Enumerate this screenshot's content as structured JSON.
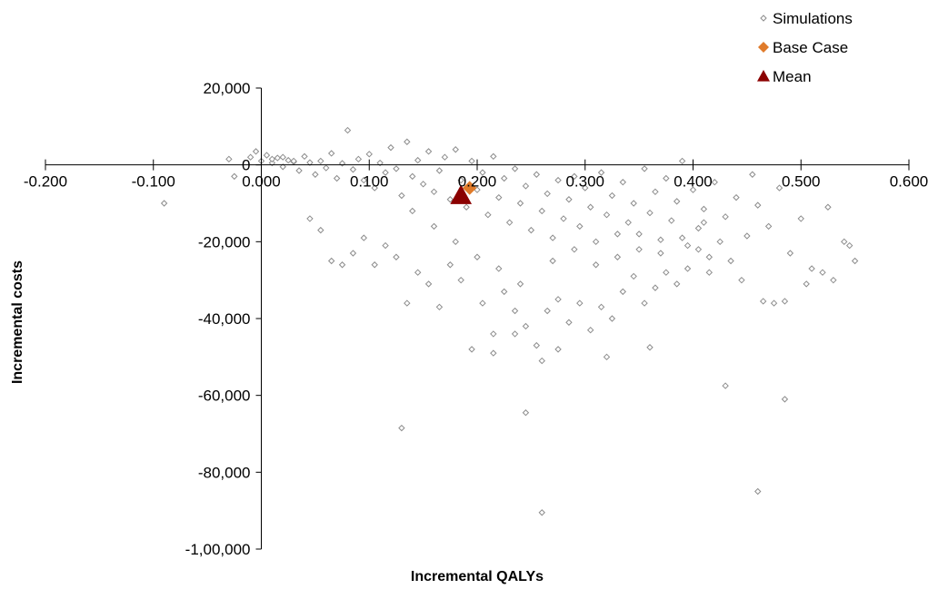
{
  "chart_data": {
    "type": "scatter",
    "xlabel": "Incremental QALYs",
    "ylabel": "Incremental costs",
    "xlim": [
      -0.2,
      0.6
    ],
    "ylim": [
      -100000,
      20000
    ],
    "x_ticks": [
      -0.2,
      -0.1,
      0.0,
      0.1,
      0.2,
      0.3,
      0.4,
      0.5,
      0.6
    ],
    "x_tick_labels": [
      "-0.200",
      "-0.100",
      "0.000",
      "0.100",
      "0.200",
      "0.300",
      "0.400",
      "0.500",
      "0.600"
    ],
    "y_ticks": [
      20000,
      0,
      -20000,
      -40000,
      -60000,
      -80000,
      -100000
    ],
    "y_tick_labels": [
      "20,000",
      "0",
      "-20,000",
      "-40,000",
      "-60,000",
      "-80,000",
      "-1,00,000"
    ],
    "legend_position": "top-right",
    "colors": {
      "simulations": "#8c8c8c",
      "base_case": "#e07b2a",
      "mean": "#8b0000",
      "axis": "#000000"
    },
    "series": [
      {
        "name": "Simulations",
        "marker": "diamond-outline",
        "points": [
          [
            -0.03,
            1500
          ],
          [
            -0.025,
            -3000
          ],
          [
            -0.01,
            2000
          ],
          [
            -0.005,
            3500
          ],
          [
            0.0,
            1000
          ],
          [
            0.005,
            2500
          ],
          [
            0.01,
            500
          ],
          [
            0.015,
            1800
          ],
          [
            0.02,
            -500
          ],
          [
            0.025,
            1200
          ],
          [
            0.03,
            800
          ],
          [
            0.035,
            -1500
          ],
          [
            0.04,
            2200
          ],
          [
            0.045,
            600
          ],
          [
            0.05,
            -2500
          ],
          [
            0.055,
            1000
          ],
          [
            0.06,
            -800
          ],
          [
            0.065,
            3000
          ],
          [
            0.07,
            -3500
          ],
          [
            0.075,
            400
          ],
          [
            0.08,
            9000
          ],
          [
            0.085,
            -1200
          ],
          [
            0.09,
            1500
          ],
          [
            0.095,
            -4000
          ],
          [
            0.1,
            2800
          ],
          [
            0.105,
            -6000
          ],
          [
            0.11,
            500
          ],
          [
            0.115,
            -2000
          ],
          [
            0.12,
            4500
          ],
          [
            0.125,
            -1000
          ],
          [
            0.13,
            -8000
          ],
          [
            0.135,
            6000
          ],
          [
            0.14,
            -3000
          ],
          [
            0.145,
            1200
          ],
          [
            0.15,
            -5000
          ],
          [
            0.155,
            3500
          ],
          [
            0.16,
            -7000
          ],
          [
            0.165,
            -1500
          ],
          [
            0.17,
            2000
          ],
          [
            0.175,
            -9000
          ],
          [
            0.18,
            4000
          ],
          [
            0.185,
            -4000
          ],
          [
            0.19,
            -11000
          ],
          [
            0.195,
            1000
          ],
          [
            0.2,
            -6500
          ],
          [
            0.205,
            -2000
          ],
          [
            0.21,
            -13000
          ],
          [
            0.215,
            2200
          ],
          [
            0.22,
            -8500
          ],
          [
            0.225,
            -3500
          ],
          [
            0.23,
            -15000
          ],
          [
            0.235,
            -1000
          ],
          [
            0.24,
            -10000
          ],
          [
            0.245,
            -5500
          ],
          [
            0.25,
            -17000
          ],
          [
            0.255,
            -2500
          ],
          [
            0.26,
            -12000
          ],
          [
            0.265,
            -7500
          ],
          [
            0.27,
            -19000
          ],
          [
            0.275,
            -4000
          ],
          [
            0.28,
            -14000
          ],
          [
            0.285,
            -9000
          ],
          [
            0.29,
            -3000
          ],
          [
            0.295,
            -16000
          ],
          [
            0.3,
            -6000
          ],
          [
            0.305,
            -11000
          ],
          [
            0.31,
            -20000
          ],
          [
            0.315,
            -2000
          ],
          [
            0.32,
            -13000
          ],
          [
            0.325,
            -8000
          ],
          [
            0.33,
            -18000
          ],
          [
            0.335,
            -4500
          ],
          [
            0.34,
            -15000
          ],
          [
            0.345,
            -10000
          ],
          [
            0.35,
            -22000
          ],
          [
            0.355,
            -1000
          ],
          [
            0.36,
            -12500
          ],
          [
            0.365,
            -7000
          ],
          [
            0.37,
            -19500
          ],
          [
            0.375,
            -3500
          ],
          [
            0.38,
            -14500
          ],
          [
            0.385,
            -9500
          ],
          [
            0.39,
            1000
          ],
          [
            0.395,
            -21000
          ],
          [
            0.4,
            -6500
          ],
          [
            0.405,
            -16500
          ],
          [
            0.41,
            -11500
          ],
          [
            0.415,
            -24000
          ],
          [
            0.42,
            -4500
          ],
          [
            0.43,
            -13500
          ],
          [
            0.44,
            -8500
          ],
          [
            0.45,
            -18500
          ],
          [
            0.455,
            -2500
          ],
          [
            0.46,
            -10500
          ],
          [
            0.47,
            -16000
          ],
          [
            0.48,
            -6000
          ],
          [
            0.49,
            -23000
          ],
          [
            0.5,
            -14000
          ],
          [
            0.51,
            -27000
          ],
          [
            0.525,
            -11000
          ],
          [
            0.53,
            -30000
          ],
          [
            0.54,
            -20000
          ],
          [
            0.55,
            -25000
          ],
          [
            0.545,
            -21000
          ],
          [
            0.52,
            -28000
          ],
          [
            0.505,
            -31000
          ],
          [
            0.485,
            -35500
          ],
          [
            0.475,
            -36000
          ],
          [
            0.465,
            -35500
          ],
          [
            0.445,
            -30000
          ],
          [
            0.435,
            -25000
          ],
          [
            0.425,
            -20000
          ],
          [
            0.415,
            -28000
          ],
          [
            0.405,
            -22000
          ],
          [
            0.395,
            -27000
          ],
          [
            0.385,
            -31000
          ],
          [
            0.375,
            -28000
          ],
          [
            0.365,
            -32000
          ],
          [
            0.355,
            -36000
          ],
          [
            0.345,
            -29000
          ],
          [
            0.335,
            -33000
          ],
          [
            0.325,
            -40000
          ],
          [
            0.315,
            -37000
          ],
          [
            0.305,
            -43000
          ],
          [
            0.295,
            -36000
          ],
          [
            0.285,
            -41000
          ],
          [
            0.275,
            -35000
          ],
          [
            0.265,
            -38000
          ],
          [
            0.255,
            -47000
          ],
          [
            0.245,
            -42000
          ],
          [
            0.235,
            -38000
          ],
          [
            0.225,
            -33000
          ],
          [
            0.215,
            -44000
          ],
          [
            0.205,
            -36000
          ],
          [
            0.195,
            -48000
          ],
          [
            0.185,
            -30000
          ],
          [
            0.175,
            -26000
          ],
          [
            0.165,
            -37000
          ],
          [
            0.155,
            -31000
          ],
          [
            0.145,
            -28000
          ],
          [
            0.135,
            -36000
          ],
          [
            0.125,
            -24000
          ],
          [
            0.115,
            -21000
          ],
          [
            0.105,
            -26000
          ],
          [
            0.095,
            -19000
          ],
          [
            0.085,
            -23000
          ],
          [
            0.075,
            -26000
          ],
          [
            0.065,
            -25000
          ],
          [
            0.055,
            -17000
          ],
          [
            0.045,
            -14000
          ],
          [
            -0.09,
            -10000
          ],
          [
            0.26,
            -51000
          ],
          [
            0.275,
            -48000
          ],
          [
            0.235,
            -44000
          ],
          [
            0.215,
            -49000
          ],
          [
            0.32,
            -50000
          ],
          [
            0.36,
            -47500
          ],
          [
            0.43,
            -57500
          ],
          [
            0.485,
            -61000
          ],
          [
            0.245,
            -64500
          ],
          [
            0.13,
            -68500
          ],
          [
            0.46,
            -85000
          ],
          [
            0.26,
            -90500
          ],
          [
            0.14,
            -12000
          ],
          [
            0.16,
            -16000
          ],
          [
            0.18,
            -20000
          ],
          [
            0.2,
            -24000
          ],
          [
            0.22,
            -27000
          ],
          [
            0.24,
            -31000
          ],
          [
            0.27,
            -25000
          ],
          [
            0.29,
            -22000
          ],
          [
            0.31,
            -26000
          ],
          [
            0.33,
            -24000
          ],
          [
            0.35,
            -18000
          ],
          [
            0.37,
            -23000
          ],
          [
            0.39,
            -19000
          ],
          [
            0.41,
            -15000
          ],
          [
            0.01,
            1500
          ],
          [
            0.02,
            2000
          ],
          [
            0.03,
            1000
          ]
        ]
      },
      {
        "name": "Base Case",
        "marker": "diamond",
        "points": [
          [
            0.193,
            -6000
          ]
        ]
      },
      {
        "name": "Mean",
        "marker": "triangle",
        "points": [
          [
            0.185,
            -8000
          ]
        ]
      }
    ],
    "legend": [
      "Simulations",
      "Base Case",
      "Mean"
    ]
  }
}
